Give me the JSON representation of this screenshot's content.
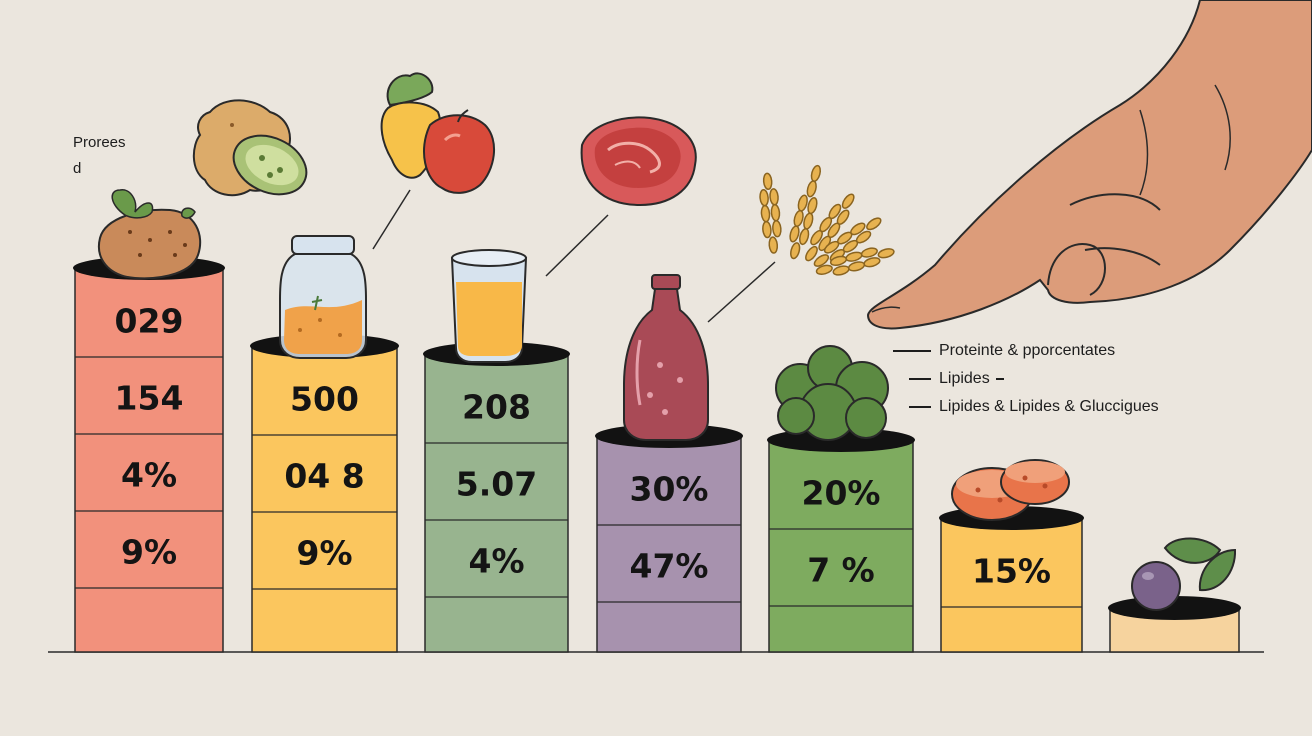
{
  "corner_text": [
    "Prorees",
    "d"
  ],
  "legend": [
    {
      "label": "Proteinte & pporcentates"
    },
    {
      "label": "Lipides"
    },
    {
      "label": "Lipides & Lipides & Gluccigues"
    }
  ],
  "columns": [
    {
      "color": "#f2917c",
      "icon": "potato-icon",
      "cells": [
        "029",
        "154",
        "4%",
        "9%"
      ]
    },
    {
      "color": "#fbc65e",
      "icon": "jar-icon",
      "cells": [
        "500",
        "04 8",
        "9%"
      ]
    },
    {
      "color": "#98b48f",
      "icon": "glass-icon",
      "cells": [
        "208",
        "5.07",
        "4%"
      ]
    },
    {
      "color": "#a792ae",
      "icon": "bottle-icon",
      "cells": [
        "30%",
        "47%"
      ]
    },
    {
      "color": "#7eab5f",
      "icon": "broccoli-icon",
      "cells": [
        "20%",
        "7 %"
      ]
    },
    {
      "color": "#fbc65e",
      "icon": "sausage-icon",
      "cells": [
        "15%"
      ]
    },
    {
      "color": "#f6d39e",
      "icon": "plum-icon",
      "cells": []
    }
  ],
  "floating_icons": [
    "ginger-icon",
    "vegetables-icon",
    "meat-icon",
    "wheat-icon",
    "pointing-hand-icon"
  ]
}
